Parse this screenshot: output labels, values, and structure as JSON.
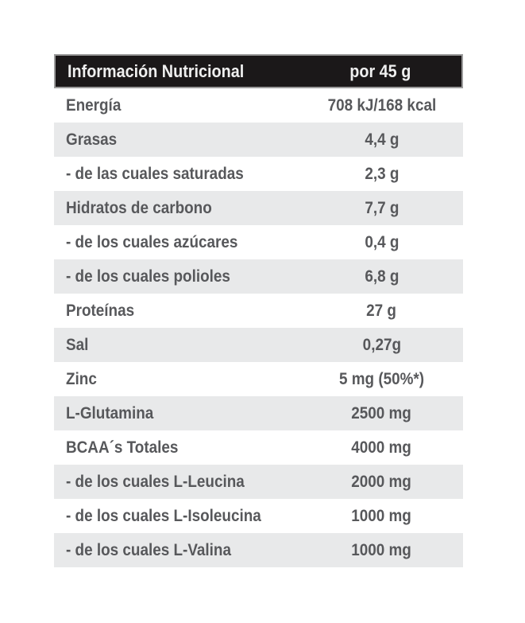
{
  "table": {
    "header": {
      "label": "Información Nutricional",
      "value": "por 45 g"
    },
    "rows": [
      {
        "label": "Energía",
        "value": "708 kJ/168 kcal"
      },
      {
        "label": "Grasas",
        "value": "4,4 g"
      },
      {
        "label": "- de las cuales saturadas",
        "value": "2,3 g"
      },
      {
        "label": "Hidratos de carbono",
        "value": "7,7 g"
      },
      {
        "label": "- de los cuales azúcares",
        "value": "0,4 g"
      },
      {
        "label": "- de los cuales polioles",
        "value": "6,8 g"
      },
      {
        "label": "Proteínas",
        "value": "27 g"
      },
      {
        "label": "Sal",
        "value": "0,27g"
      },
      {
        "label": "Zinc",
        "value": "5 mg (50%*)"
      },
      {
        "label": "L-Glutamina",
        "value": "2500 mg"
      },
      {
        "label": "BCAA´s Totales",
        "value": "4000 mg"
      },
      {
        "label": "- de los cuales L-Leucina",
        "value": "2000 mg"
      },
      {
        "label": "- de los cuales L-Isoleucina",
        "value": "1000 mg"
      },
      {
        "label": "- de los cuales L-Valina",
        "value": "1000 mg"
      }
    ],
    "colors": {
      "header_bg": "#1b1819",
      "header_text": "#efefef",
      "row_alt_bg": "#e8e9ea",
      "row_text": "#57585b",
      "page_bg": "#ffffff"
    }
  }
}
